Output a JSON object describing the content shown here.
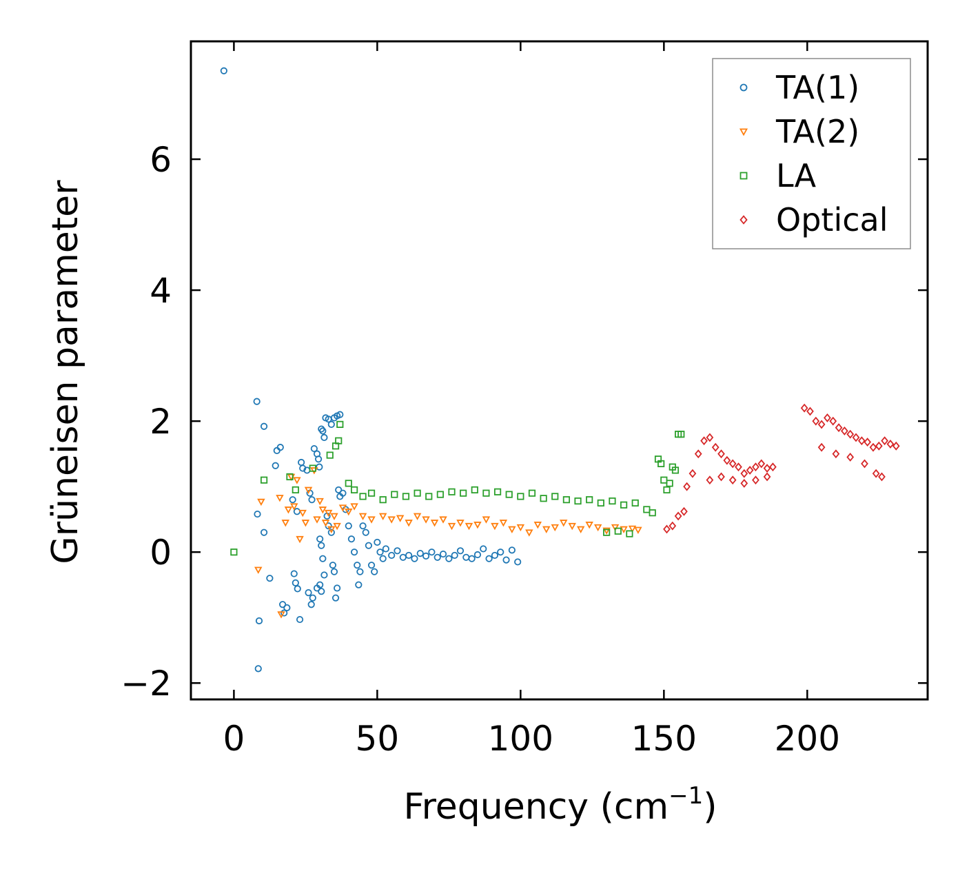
{
  "chart_data": {
    "type": "scatter",
    "title": "",
    "xlabel": "Frequency (cm",
    "xlabel_sup": "−1",
    "xlabel_close": ")",
    "ylabel": "Grüneisen parameter",
    "xlim": [
      -15,
      242
    ],
    "ylim": [
      -2.25,
      7.8
    ],
    "xticks": [
      0,
      50,
      100,
      150,
      200
    ],
    "xtick_labels": [
      "0",
      "50",
      "100",
      "150",
      "200"
    ],
    "yticks": [
      -2,
      0,
      2,
      4,
      6
    ],
    "ytick_labels": [
      "−2",
      "0",
      "2",
      "4",
      "6"
    ],
    "grid": false,
    "legend_position": "top-right",
    "series": [
      {
        "name": "TA(1)",
        "marker": "circle",
        "color": "#1f77b4",
        "points": [
          [
            -3.5,
            7.35
          ],
          [
            8,
            2.3
          ],
          [
            10.5,
            1.92
          ],
          [
            15,
            1.55
          ],
          [
            16.2,
            1.6
          ],
          [
            14.5,
            1.32
          ],
          [
            8.2,
            0.58
          ],
          [
            10.5,
            0.3
          ],
          [
            12.5,
            -0.4
          ],
          [
            8.8,
            -1.05
          ],
          [
            8.5,
            -1.78
          ],
          [
            17,
            -0.8
          ],
          [
            17.5,
            -0.93
          ],
          [
            18.5,
            -0.85
          ],
          [
            20.5,
            0.8
          ],
          [
            22,
            0.62
          ],
          [
            21,
            -0.33
          ],
          [
            21.5,
            -0.47
          ],
          [
            22.2,
            -0.56
          ],
          [
            23,
            -1.03
          ],
          [
            23.5,
            1.37
          ],
          [
            24,
            1.28
          ],
          [
            25.5,
            1.25
          ],
          [
            26,
            -0.62
          ],
          [
            27,
            -0.8
          ],
          [
            27.5,
            -0.7
          ],
          [
            26.5,
            0.9
          ],
          [
            27.2,
            0.8
          ],
          [
            28,
            1.58
          ],
          [
            29,
            1.5
          ],
          [
            29.5,
            1.42
          ],
          [
            29.8,
            1.3
          ],
          [
            30.5,
            1.88
          ],
          [
            31,
            1.85
          ],
          [
            31.5,
            1.75
          ],
          [
            32,
            2.05
          ],
          [
            33,
            2.03
          ],
          [
            34,
            1.95
          ],
          [
            35,
            2.05
          ],
          [
            36,
            2.08
          ],
          [
            37,
            2.1
          ],
          [
            30,
            0.2
          ],
          [
            30.5,
            0.1
          ],
          [
            31,
            -0.1
          ],
          [
            31.5,
            -0.35
          ],
          [
            29,
            -0.55
          ],
          [
            30,
            -0.5
          ],
          [
            30.5,
            -0.6
          ],
          [
            32.5,
            0.55
          ],
          [
            33,
            0.4
          ],
          [
            34,
            0.3
          ],
          [
            34.5,
            -0.2
          ],
          [
            35,
            -0.3
          ],
          [
            35.5,
            -0.7
          ],
          [
            36,
            -0.55
          ],
          [
            36.5,
            0.95
          ],
          [
            37,
            0.85
          ],
          [
            38,
            0.9
          ],
          [
            39,
            0.65
          ],
          [
            40,
            0.4
          ],
          [
            41,
            0.2
          ],
          [
            42,
            0.0
          ],
          [
            43,
            -0.2
          ],
          [
            43.5,
            -0.5
          ],
          [
            44,
            -0.3
          ],
          [
            45,
            0.4
          ],
          [
            46,
            0.3
          ],
          [
            47,
            0.1
          ],
          [
            48,
            -0.2
          ],
          [
            49,
            -0.3
          ],
          [
            50,
            0.15
          ],
          [
            51,
            0.0
          ],
          [
            52,
            -0.1
          ],
          [
            53,
            0.05
          ],
          [
            55,
            -0.05
          ],
          [
            57,
            0.02
          ],
          [
            59,
            -0.08
          ],
          [
            61,
            -0.05
          ],
          [
            63,
            -0.1
          ],
          [
            65,
            -0.02
          ],
          [
            67,
            -0.06
          ],
          [
            69,
            0.0
          ],
          [
            71,
            -0.08
          ],
          [
            73,
            -0.03
          ],
          [
            75,
            -0.1
          ],
          [
            77,
            -0.05
          ],
          [
            79,
            0.02
          ],
          [
            81,
            -0.08
          ],
          [
            83,
            -0.1
          ],
          [
            85,
            -0.04
          ],
          [
            87,
            0.05
          ],
          [
            89,
            -0.1
          ],
          [
            91,
            -0.05
          ],
          [
            93,
            0.0
          ],
          [
            95,
            -0.12
          ],
          [
            97,
            0.03
          ],
          [
            99,
            -0.15
          ]
        ]
      },
      {
        "name": "TA(2)",
        "marker": "triangle-down",
        "color": "#ff7f0e",
        "points": [
          [
            8.5,
            -0.27
          ],
          [
            9.5,
            0.77
          ],
          [
            16,
            0.83
          ],
          [
            16.5,
            -0.95
          ],
          [
            18,
            0.45
          ],
          [
            19,
            0.65
          ],
          [
            20,
            1.15
          ],
          [
            21,
            0.7
          ],
          [
            22,
            1.1
          ],
          [
            23,
            0.2
          ],
          [
            24,
            0.6
          ],
          [
            25,
            0.45
          ],
          [
            26,
            0.95
          ],
          [
            28,
            1.25
          ],
          [
            29,
            0.5
          ],
          [
            30,
            0.78
          ],
          [
            31,
            0.65
          ],
          [
            32,
            0.45
          ],
          [
            33,
            0.6
          ],
          [
            34,
            0.35
          ],
          [
            35,
            0.55
          ],
          [
            36,
            0.4
          ],
          [
            38,
            0.68
          ],
          [
            40,
            0.62
          ],
          [
            42,
            0.7
          ],
          [
            45,
            0.55
          ],
          [
            48,
            0.5
          ],
          [
            52,
            0.55
          ],
          [
            55,
            0.5
          ],
          [
            58,
            0.52
          ],
          [
            61,
            0.45
          ],
          [
            64,
            0.55
          ],
          [
            67,
            0.5
          ],
          [
            70,
            0.45
          ],
          [
            73,
            0.5
          ],
          [
            76,
            0.4
          ],
          [
            79,
            0.45
          ],
          [
            82,
            0.4
          ],
          [
            85,
            0.42
          ],
          [
            88,
            0.5
          ],
          [
            91,
            0.4
          ],
          [
            94,
            0.45
          ],
          [
            97,
            0.35
          ],
          [
            100,
            0.38
          ],
          [
            103,
            0.3
          ],
          [
            106,
            0.42
          ],
          [
            109,
            0.35
          ],
          [
            112,
            0.38
          ],
          [
            115,
            0.45
          ],
          [
            118,
            0.4
          ],
          [
            121,
            0.35
          ],
          [
            124,
            0.42
          ],
          [
            127,
            0.38
          ],
          [
            130,
            0.33
          ],
          [
            133,
            0.38
          ],
          [
            136,
            0.35
          ],
          [
            139,
            0.36
          ],
          [
            141,
            0.34
          ]
        ]
      },
      {
        "name": "LA",
        "marker": "square",
        "color": "#2ca02c",
        "points": [
          [
            0,
            0.0
          ],
          [
            10.5,
            1.1
          ],
          [
            19.5,
            1.15
          ],
          [
            21.5,
            0.95
          ],
          [
            27.5,
            1.28
          ],
          [
            33.5,
            1.48
          ],
          [
            35.5,
            1.62
          ],
          [
            37,
            1.95
          ],
          [
            36.5,
            1.7
          ],
          [
            40,
            1.05
          ],
          [
            42,
            0.95
          ],
          [
            45,
            0.85
          ],
          [
            48,
            0.9
          ],
          [
            52,
            0.8
          ],
          [
            56,
            0.88
          ],
          [
            60,
            0.85
          ],
          [
            64,
            0.9
          ],
          [
            68,
            0.85
          ],
          [
            72,
            0.88
          ],
          [
            76,
            0.92
          ],
          [
            80,
            0.9
          ],
          [
            84,
            0.95
          ],
          [
            88,
            0.9
          ],
          [
            92,
            0.92
          ],
          [
            96,
            0.88
          ],
          [
            100,
            0.85
          ],
          [
            104,
            0.9
          ],
          [
            108,
            0.82
          ],
          [
            112,
            0.85
          ],
          [
            116,
            0.8
          ],
          [
            120,
            0.78
          ],
          [
            124,
            0.8
          ],
          [
            128,
            0.75
          ],
          [
            132,
            0.78
          ],
          [
            136,
            0.72
          ],
          [
            140,
            0.75
          ],
          [
            144,
            0.65
          ],
          [
            146,
            0.6
          ],
          [
            148,
            1.42
          ],
          [
            149,
            1.35
          ],
          [
            150,
            1.1
          ],
          [
            151,
            0.95
          ],
          [
            152,
            1.05
          ],
          [
            153,
            1.3
          ],
          [
            154,
            1.25
          ],
          [
            155,
            1.8
          ],
          [
            156,
            1.8
          ],
          [
            130,
            0.3
          ],
          [
            134,
            0.32
          ],
          [
            138,
            0.28
          ]
        ]
      },
      {
        "name": "Optical",
        "marker": "diamond",
        "color": "#d62728",
        "points": [
          [
            151,
            0.35
          ],
          [
            153,
            0.4
          ],
          [
            155,
            0.55
          ],
          [
            157,
            0.62
          ],
          [
            158,
            1.0
          ],
          [
            160,
            1.2
          ],
          [
            162,
            1.5
          ],
          [
            164,
            1.7
          ],
          [
            166,
            1.75
          ],
          [
            168,
            1.6
          ],
          [
            170,
            1.5
          ],
          [
            172,
            1.4
          ],
          [
            174,
            1.35
          ],
          [
            176,
            1.3
          ],
          [
            178,
            1.2
          ],
          [
            180,
            1.25
          ],
          [
            182,
            1.3
          ],
          [
            184,
            1.35
          ],
          [
            186,
            1.28
          ],
          [
            188,
            1.3
          ],
          [
            166,
            1.1
          ],
          [
            170,
            1.15
          ],
          [
            174,
            1.1
          ],
          [
            178,
            1.05
          ],
          [
            182,
            1.1
          ],
          [
            186,
            1.15
          ],
          [
            199,
            2.2
          ],
          [
            201,
            2.15
          ],
          [
            203,
            2.0
          ],
          [
            205,
            1.95
          ],
          [
            207,
            2.05
          ],
          [
            209,
            2.0
          ],
          [
            211,
            1.9
          ],
          [
            213,
            1.85
          ],
          [
            215,
            1.8
          ],
          [
            217,
            1.75
          ],
          [
            219,
            1.7
          ],
          [
            221,
            1.68
          ],
          [
            223,
            1.6
          ],
          [
            225,
            1.62
          ],
          [
            227,
            1.7
          ],
          [
            229,
            1.65
          ],
          [
            231,
            1.62
          ],
          [
            205,
            1.6
          ],
          [
            210,
            1.5
          ],
          [
            215,
            1.45
          ],
          [
            220,
            1.35
          ],
          [
            224,
            1.2
          ],
          [
            226,
            1.15
          ]
        ]
      }
    ]
  }
}
